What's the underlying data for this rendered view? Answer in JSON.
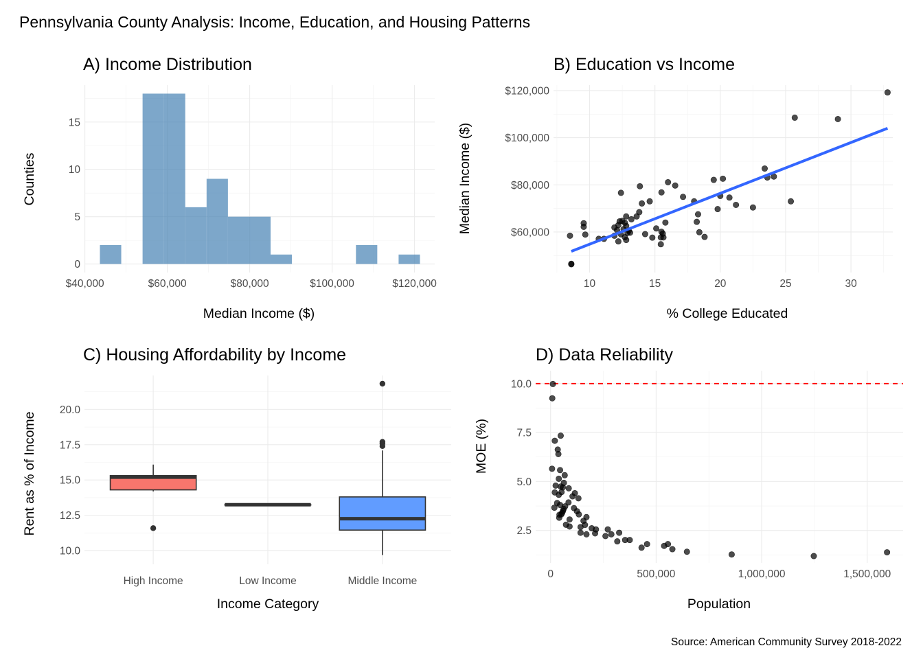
{
  "figure": {
    "title": "Pennsylvania County Analysis: Income, Education, and Housing Patterns",
    "caption": "Source: American Community Survey 2018-2022"
  },
  "chart_data": [
    {
      "id": "A",
      "type": "bar",
      "subtype": "histogram",
      "title": "A) Income Distribution",
      "xlabel": "Median Income ($)",
      "ylabel": "Counties",
      "bar_color": "#4682b4",
      "bin_start": 43646,
      "bin_width": 5178,
      "counts": [
        2,
        0,
        18,
        18,
        6,
        9,
        5,
        5,
        1,
        0,
        0,
        0,
        2,
        0,
        1
      ],
      "xlim": [
        39900,
        124900
      ],
      "ylim": [
        -0.9,
        18.9
      ],
      "xticks": [
        40000,
        60000,
        80000,
        100000,
        120000
      ],
      "xtick_labels": [
        "$40,000",
        "$60,000",
        "$80,000",
        "$100,000",
        "$120,000"
      ],
      "yticks": [
        0,
        5,
        10,
        15
      ],
      "ytick_labels": [
        "0",
        "5",
        "10",
        "15"
      ],
      "grid": true
    },
    {
      "id": "B",
      "type": "scatter",
      "title": "B) Education vs Income",
      "xlabel": "% College Educated",
      "ylabel": "Median Income ($)",
      "point_color": "#000000",
      "trend_color": "#3366ff",
      "xlim": [
        7.24,
        33.2
      ],
      "ylim": [
        42800,
        122300
      ],
      "xticks": [
        10,
        15,
        20,
        25,
        30
      ],
      "xtick_labels": [
        "10",
        "15",
        "20",
        "25",
        "30"
      ],
      "yticks": [
        60000,
        80000,
        100000,
        120000
      ],
      "ytick_labels": [
        "$60,000",
        "$80,000",
        "$100,000",
        "$120,000"
      ],
      "trend_line": {
        "x": [
          8.6,
          32.8
        ],
        "y": [
          51800,
          104000
        ]
      },
      "points": [
        [
          8.5,
          58400
        ],
        [
          8.6,
          46500
        ],
        [
          9.55,
          63700
        ],
        [
          9.55,
          62200
        ],
        [
          9.67,
          58900
        ],
        [
          10.7,
          57100
        ],
        [
          11.1,
          57100
        ],
        [
          11.9,
          61900
        ],
        [
          12.1,
          60800
        ],
        [
          11.9,
          58400
        ],
        [
          12.2,
          56000
        ],
        [
          12.4,
          76600
        ],
        [
          12.5,
          64700
        ],
        [
          12.7,
          63900
        ],
        [
          12.8,
          66600
        ],
        [
          12.8,
          62600
        ],
        [
          12.9,
          59600
        ],
        [
          12.8,
          56600
        ],
        [
          13.1,
          59700
        ],
        [
          13.2,
          65400
        ],
        [
          13.6,
          66600
        ],
        [
          13.8,
          68400
        ],
        [
          13.85,
          79400
        ],
        [
          14.0,
          72100
        ],
        [
          14.25,
          59100
        ],
        [
          14.6,
          73000
        ],
        [
          14.8,
          57600
        ],
        [
          15.1,
          61500
        ],
        [
          15.5,
          76800
        ],
        [
          15.5,
          60100
        ],
        [
          15.45,
          57700
        ],
        [
          15.65,
          57700
        ],
        [
          15.45,
          54800
        ],
        [
          15.8,
          64000
        ],
        [
          16.0,
          81100
        ],
        [
          16.55,
          79700
        ],
        [
          17.15,
          74900
        ],
        [
          18.0,
          73000
        ],
        [
          18.2,
          64300
        ],
        [
          18.3,
          67500
        ],
        [
          18.4,
          59900
        ],
        [
          18.8,
          57900
        ],
        [
          19.5,
          82100
        ],
        [
          19.8,
          69700
        ],
        [
          20.0,
          75300
        ],
        [
          20.2,
          82600
        ],
        [
          20.7,
          74600
        ],
        [
          21.2,
          71500
        ],
        [
          22.5,
          70400
        ],
        [
          23.4,
          86900
        ],
        [
          23.6,
          83100
        ],
        [
          24.1,
          83500
        ],
        [
          25.4,
          73000
        ],
        [
          25.7,
          108500
        ],
        [
          29.0,
          107900
        ],
        [
          32.8,
          119200
        ],
        [
          12.3,
          64500
        ],
        [
          12.6,
          61200
        ],
        [
          12.4,
          59000
        ],
        [
          12.7,
          57800
        ],
        [
          13.0,
          60600
        ],
        [
          12.2,
          62900
        ],
        [
          15.6,
          59300
        ],
        [
          8.6,
          46300
        ]
      ],
      "grid": true
    },
    {
      "id": "C",
      "type": "box",
      "title": "C) Housing Affordability by Income",
      "xlabel": "Income Category",
      "ylabel": "Rent as % of Income",
      "ylim": [
        9.03,
        22.4
      ],
      "yticks": [
        10.0,
        12.5,
        15.0,
        17.5,
        20.0
      ],
      "ytick_labels": [
        "10.0",
        "12.5",
        "15.0",
        "17.5",
        "20.0"
      ],
      "categories": [
        "High Income",
        "Low Income",
        "Middle Income"
      ],
      "boxes": [
        {
          "category": "High Income",
          "fill": "#f8766d",
          "whisker_low": 14.19,
          "q1": 14.3,
          "median": 15.2,
          "q3": 15.31,
          "whisker_high": 16.09,
          "outliers": [
            11.59
          ]
        },
        {
          "category": "Low Income",
          "fill": "#00ba38",
          "whisker_low": 13.25,
          "q1": 13.25,
          "median": 13.25,
          "q3": 13.25,
          "whisker_high": 13.25,
          "outliers": []
        },
        {
          "category": "Middle Income",
          "fill": "#619cff",
          "whisker_low": 9.68,
          "q1": 11.45,
          "median": 12.26,
          "q3": 13.8,
          "whisker_high": 17.09,
          "outliers": [
            17.4,
            17.58,
            17.7,
            21.82
          ]
        }
      ],
      "grid": true
    },
    {
      "id": "D",
      "type": "scatter",
      "title": "D) Data Reliability",
      "xlabel": "Population",
      "ylabel": "MOE (%)",
      "point_color": "#000000",
      "threshold": {
        "y": 10,
        "color": "#ff0000",
        "style": "dashed"
      },
      "xlim": [
        -70600,
        1670000
      ],
      "ylim": [
        0.84,
        10.66
      ],
      "xticks": [
        0,
        500000,
        1000000,
        1500000
      ],
      "xtick_labels": [
        "0",
        "500,000",
        "1,000,000",
        "1,500,000"
      ],
      "yticks": [
        2.5,
        5.0,
        7.5,
        10.0
      ],
      "ytick_labels": [
        "2.5",
        "5.0",
        "7.5",
        "10.0"
      ],
      "points": [
        [
          11000,
          9.98
        ],
        [
          8000,
          9.25
        ],
        [
          20000,
          7.08
        ],
        [
          48000,
          7.34
        ],
        [
          34000,
          6.63
        ],
        [
          37000,
          6.4
        ],
        [
          7000,
          5.65
        ],
        [
          45000,
          5.58
        ],
        [
          67000,
          5.32
        ],
        [
          39000,
          5.14
        ],
        [
          24000,
          4.79
        ],
        [
          63000,
          4.93
        ],
        [
          48000,
          4.74
        ],
        [
          52000,
          4.46
        ],
        [
          20000,
          4.44
        ],
        [
          86000,
          4.65
        ],
        [
          39000,
          4.32
        ],
        [
          115000,
          4.4
        ],
        [
          104000,
          4.24
        ],
        [
          132000,
          4.14
        ],
        [
          85000,
          3.93
        ],
        [
          31000,
          3.9
        ],
        [
          18000,
          3.66
        ],
        [
          69000,
          3.73
        ],
        [
          111000,
          3.64
        ],
        [
          125000,
          3.48
        ],
        [
          134000,
          3.32
        ],
        [
          59000,
          3.5
        ],
        [
          51000,
          3.32
        ],
        [
          41000,
          3.15
        ],
        [
          90000,
          3.06
        ],
        [
          170000,
          3.18
        ],
        [
          156000,
          2.99
        ],
        [
          73000,
          2.79
        ],
        [
          90000,
          2.7
        ],
        [
          142000,
          2.67
        ],
        [
          163000,
          2.78
        ],
        [
          142000,
          2.38
        ],
        [
          170000,
          2.3
        ],
        [
          195000,
          2.61
        ],
        [
          215000,
          2.55
        ],
        [
          211000,
          2.35
        ],
        [
          271000,
          2.55
        ],
        [
          260000,
          2.21
        ],
        [
          288000,
          2.3
        ],
        [
          325000,
          2.38
        ],
        [
          316000,
          1.94
        ],
        [
          353000,
          2.01
        ],
        [
          375000,
          2.01
        ],
        [
          431000,
          1.62
        ],
        [
          457000,
          1.8
        ],
        [
          538000,
          1.71
        ],
        [
          556000,
          1.8
        ],
        [
          577000,
          1.54
        ],
        [
          646000,
          1.41
        ],
        [
          858000,
          1.27
        ],
        [
          1247000,
          1.19
        ],
        [
          1594000,
          1.38
        ],
        [
          55000,
          3.4
        ],
        [
          62000,
          3.6
        ],
        [
          45000,
          3.8
        ],
        [
          58000,
          4.7
        ],
        [
          42000,
          3.3
        ]
      ],
      "grid": true
    }
  ]
}
